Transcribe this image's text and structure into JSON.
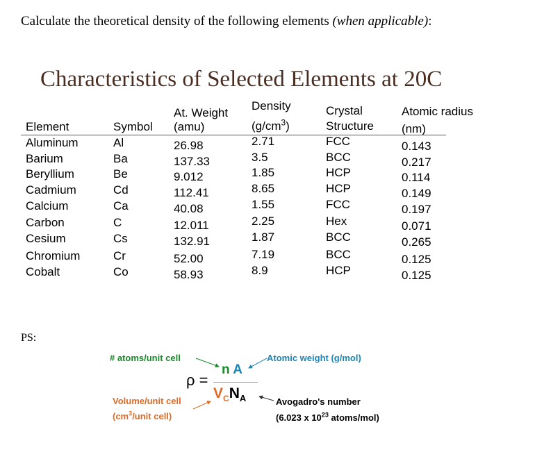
{
  "intro": {
    "text": "Calculate the theoretical density of the following elements ",
    "italic": "(when applicable)",
    "colon": ":"
  },
  "title": "Characteristics of Selected Elements at 20C",
  "table": {
    "headers": [
      {
        "l1": "",
        "l2": "Element"
      },
      {
        "l1": "",
        "l2": "Symbol"
      },
      {
        "l1": "At. Weight",
        "l2": "(amu)"
      },
      {
        "l1": "Density",
        "l2": "(g/cm",
        "sup": "3",
        "close": ")"
      },
      {
        "l1": "Crystal",
        "l2": "Structure"
      },
      {
        "l1": "Atomic radius",
        "l2": "(nm)"
      }
    ],
    "rows": [
      [
        "Aluminum",
        "Al",
        "26.98",
        "2.71",
        "FCC",
        "0.143"
      ],
      [
        "Barium",
        "Ba",
        "137.33",
        "3.5",
        "BCC",
        "0.217"
      ],
      [
        "Beryllium",
        "Be",
        "9.012",
        "1.85",
        "HCP",
        "0.114"
      ],
      [
        "Cadmium",
        "Cd",
        "112.41",
        "8.65",
        "HCP",
        "0.149"
      ],
      [
        "Calcium",
        "Ca",
        "40.08",
        "1.55",
        "FCC",
        "0.197"
      ],
      [
        "Carbon",
        "C",
        "12.011",
        "2.25",
        "Hex",
        "0.071"
      ],
      [
        "Cesium",
        "Cs",
        "132.91",
        "1.87",
        "BCC",
        "0.265"
      ],
      [
        "Chromium",
        "Cr",
        "52.00",
        "7.19",
        "BCC",
        "0.125"
      ],
      [
        "Cobalt",
        "Co",
        "58.93",
        "8.9",
        "HCP",
        "0.125"
      ]
    ]
  },
  "ps": "PS:",
  "formula": {
    "rho": "ρ =",
    "n": "n",
    "A": "A",
    "Vc_V": "V",
    "Vc_c": "C",
    "NA_N": "N",
    "NA_A": "A",
    "atoms_label": "# atoms/unit cell",
    "weight_label": "Atomic weight (g/mol)",
    "volume_label": "Volume/unit cell",
    "volume_unit_a": "(cm",
    "volume_unit_sup": "3",
    "volume_unit_b": "/unit cell)",
    "avogadro_label": "Avogadro's number",
    "avogadro_val_a": "(6.023 x 10",
    "avogadro_val_sup": "23",
    "avogadro_val_b": " atoms/mol)"
  },
  "colors": {
    "green": "#1a8a2a",
    "blue": "#1a86b8",
    "orange": "#e06a24",
    "title": "#4a2e22"
  }
}
